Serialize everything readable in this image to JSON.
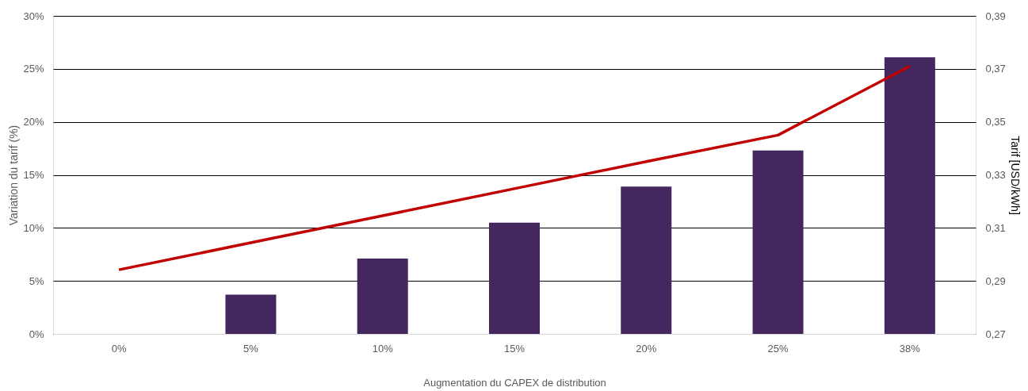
{
  "chart_data": {
    "type": "bar",
    "xlabel": "Augmentation du CAPEX de distribution",
    "ylabel": "Variation du tarif (%)",
    "y2label": "Tarif [USD/kWh]",
    "categories": [
      "0%",
      "5%",
      "10%",
      "15%",
      "20%",
      "25%",
      "38%"
    ],
    "series": [
      {
        "color": "#44275f",
        "values": [
          0,
          3.7,
          7.1,
          10.5,
          13.9,
          17.3,
          26.1
        ]
      },
      {
        "type": "line",
        "axis": "y2",
        "color": "#c00000",
        "values": [
          0.2942,
          0.3044,
          0.3146,
          0.3248,
          0.335,
          0.345,
          0.371
        ]
      }
    ],
    "ylim": [
      0,
      30
    ],
    "yticks": [
      {
        "value": 0,
        "label": "0%"
      },
      {
        "value": 5,
        "label": "5%"
      },
      {
        "value": 10,
        "label": "10%"
      },
      {
        "value": 15,
        "label": "15%"
      },
      {
        "value": 20,
        "label": "20%"
      },
      {
        "value": 25,
        "label": "25%"
      },
      {
        "value": 30,
        "label": "30%"
      }
    ],
    "y2lim": [
      0.27,
      0.39
    ],
    "y2ticks": [
      {
        "value": 0.27,
        "label": "0,27"
      },
      {
        "value": 0.29,
        "label": "0,29"
      },
      {
        "value": 0.31,
        "label": "0,31"
      },
      {
        "value": 0.33,
        "label": "0,33"
      },
      {
        "value": 0.35,
        "label": "0,35"
      },
      {
        "value": 0.37,
        "label": "0,37"
      },
      {
        "value": 0.39,
        "label": "0,39"
      }
    ],
    "grid": "y",
    "line_style": "solid",
    "marker": "none"
  }
}
